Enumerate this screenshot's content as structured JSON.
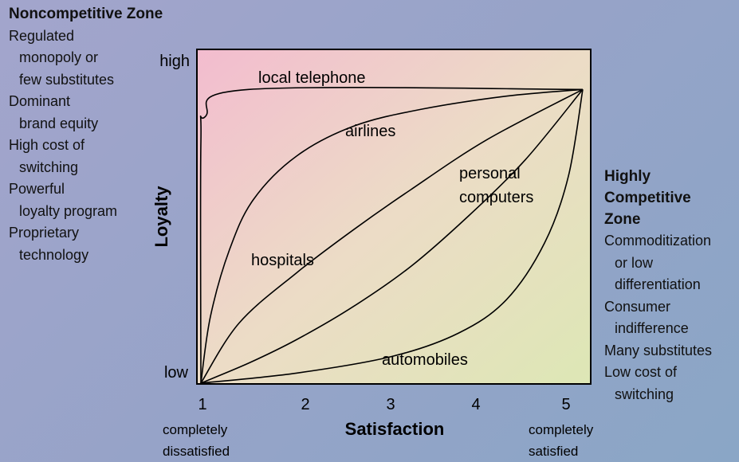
{
  "left_zone": {
    "title": "Noncompetitive Zone",
    "items": [
      [
        "Regulated",
        "monopoly or",
        "few substitutes"
      ],
      [
        "Dominant",
        "brand equity"
      ],
      [
        "High cost of",
        "switching"
      ],
      [
        "Powerful",
        "loyalty program"
      ],
      [
        "Proprietary",
        "technology"
      ]
    ]
  },
  "right_zone": {
    "title_lines": [
      "Highly",
      "Competitive",
      "Zone"
    ],
    "items": [
      [
        "Commoditization",
        "or low",
        "differentiation"
      ],
      [
        "Consumer",
        "indifference"
      ],
      [
        "Many substitutes"
      ],
      [
        "Low cost of",
        "switching"
      ]
    ]
  },
  "chart_data": {
    "type": "line",
    "xlabel": "Satisfaction",
    "ylabel": "Loyalty",
    "x_ticks": [
      "1",
      "2",
      "3",
      "4",
      "5"
    ],
    "x_tick_notes": {
      "left": [
        "completely",
        "dissatisfied"
      ],
      "right": [
        "completely",
        "satisfied"
      ]
    },
    "y_ticks": {
      "high": "high",
      "low": "low"
    },
    "xlim": [
      1,
      5
    ],
    "ylim": [
      0,
      1
    ],
    "gradient_colors": [
      "#f3bccf",
      "#ecdcc6",
      "#dde7b5"
    ],
    "series": [
      {
        "name": "local telephone",
        "points": [
          [
            1,
            0
          ],
          [
            1,
            0.72
          ],
          [
            1.05,
            0.8
          ],
          [
            1.5,
            0.88
          ],
          [
            5,
            0.88
          ]
        ]
      },
      {
        "name": "airlines",
        "points": [
          [
            1,
            0
          ],
          [
            1.1,
            0.2
          ],
          [
            1.3,
            0.4
          ],
          [
            1.55,
            0.55
          ],
          [
            2,
            0.68
          ],
          [
            2.6,
            0.77
          ],
          [
            3.3,
            0.82
          ],
          [
            4.2,
            0.86
          ],
          [
            5,
            0.88
          ]
        ]
      },
      {
        "name": "hospitals",
        "points": [
          [
            1,
            0
          ],
          [
            1.4,
            0.18
          ],
          [
            2,
            0.33
          ],
          [
            2.6,
            0.46
          ],
          [
            3.2,
            0.58
          ],
          [
            4,
            0.73
          ],
          [
            5,
            0.88
          ]
        ]
      },
      {
        "name": "personal computers",
        "points": [
          [
            1,
            0
          ],
          [
            1.5,
            0.06
          ],
          [
            2,
            0.13
          ],
          [
            2.6,
            0.23
          ],
          [
            3.2,
            0.35
          ],
          [
            3.8,
            0.5
          ],
          [
            4.4,
            0.67
          ],
          [
            5,
            0.88
          ]
        ]
      },
      {
        "name": "automobiles",
        "points": [
          [
            1,
            0
          ],
          [
            2,
            0.03
          ],
          [
            3,
            0.08
          ],
          [
            3.7,
            0.15
          ],
          [
            4.2,
            0.25
          ],
          [
            4.6,
            0.42
          ],
          [
            4.85,
            0.62
          ],
          [
            5,
            0.88
          ]
        ]
      }
    ]
  }
}
